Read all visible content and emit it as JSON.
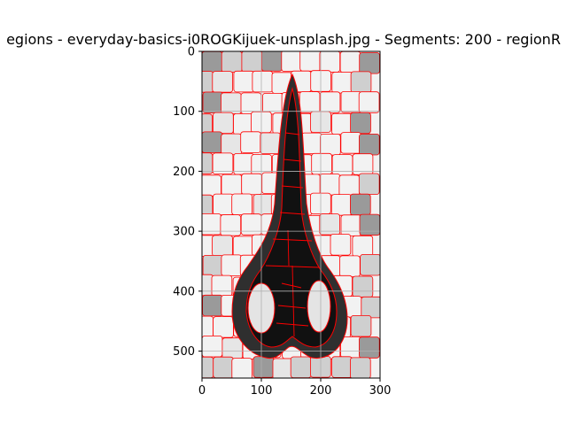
{
  "chart_data": {
    "type": "heatmap",
    "title": "egions - everyday-basics-i0ROGKijuek-unsplash.jpg - Segments: 200 - regionR",
    "xlabel": "",
    "ylabel": "",
    "xlim": [
      0,
      300
    ],
    "ylim": [
      545,
      0
    ],
    "x_ticks": [
      "0",
      "100",
      "200",
      "300"
    ],
    "y_ticks": [
      "0",
      "100",
      "200",
      "300",
      "400",
      "500"
    ],
    "x_tick_values": [
      0,
      100,
      200,
      300
    ],
    "y_tick_values": [
      0,
      100,
      200,
      300,
      400,
      500
    ],
    "grid": true,
    "segments": 200,
    "boundary_color": "#ff0000",
    "colors": {
      "background_light": "#f2f2f2",
      "background_mid": "#cfcfcf",
      "background_dark": "#9a9a9a",
      "object_outer": "#2f2f2f",
      "object_inner": "#111111",
      "grid": "#b0b0b0"
    }
  }
}
